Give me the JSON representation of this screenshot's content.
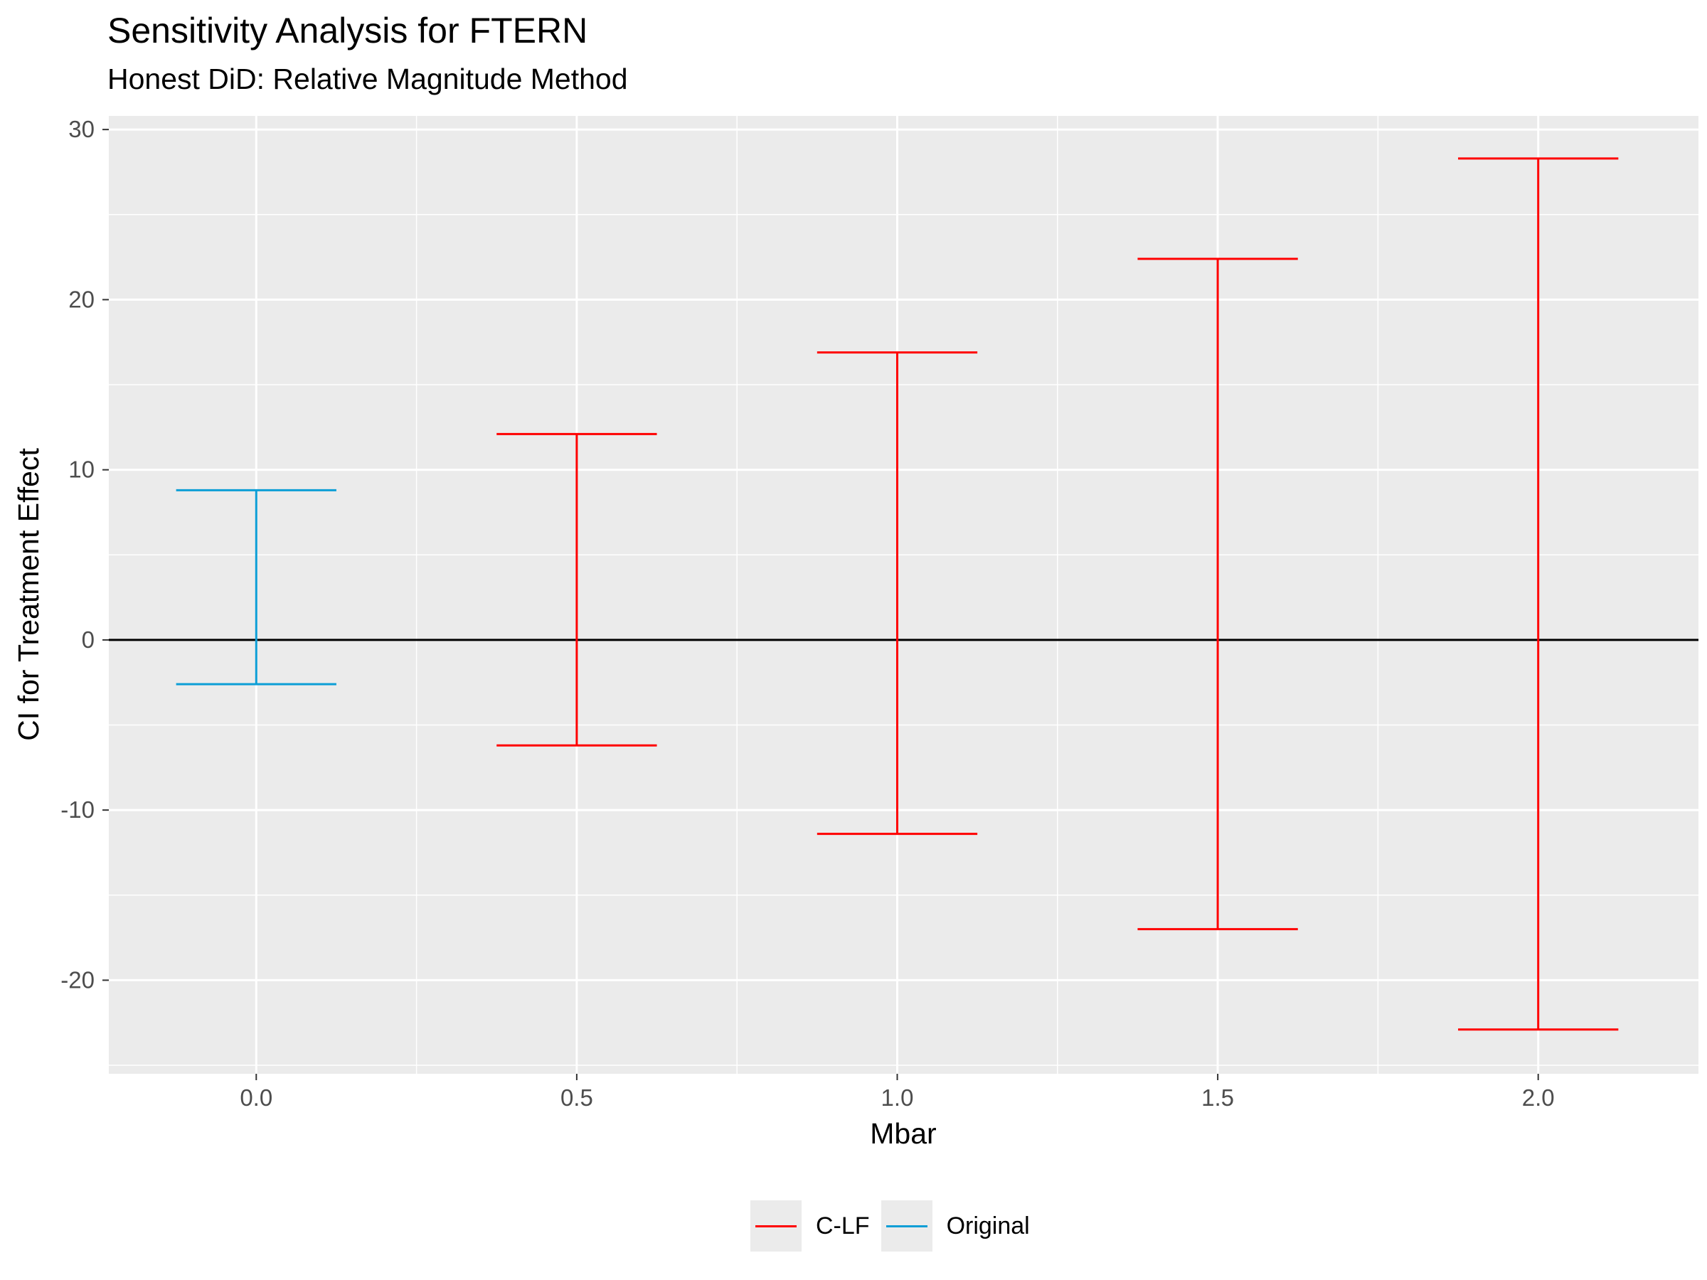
{
  "title": "Sensitivity Analysis for FTERN",
  "subtitle": "Honest DiD: Relative Magnitude Method",
  "chart_data": {
    "type": "errorbar",
    "title": "Sensitivity Analysis for FTERN",
    "subtitle": "Honest DiD: Relative Magnitude Method",
    "xlabel": "Mbar",
    "ylabel": "CI for Treatment Effect",
    "x_ticks": [
      "0.0",
      "0.5",
      "1.0",
      "1.5",
      "2.0"
    ],
    "y_ticks": [
      "30",
      "20",
      "10",
      "0",
      "-10",
      "-20"
    ],
    "xlim": [
      -0.23,
      2.25
    ],
    "ylim": [
      -25.5,
      30.8
    ],
    "grid": true,
    "hline": 0,
    "legend_position": "bottom",
    "series": [
      {
        "name": "C-LF",
        "color": "#ff0000",
        "points": [
          {
            "x": 0.5,
            "lb": -6.2,
            "ub": 12.1
          },
          {
            "x": 1.0,
            "lb": -11.4,
            "ub": 16.9
          },
          {
            "x": 1.5,
            "lb": -17.0,
            "ub": 22.4
          },
          {
            "x": 2.0,
            "lb": -22.9,
            "ub": 28.3
          }
        ]
      },
      {
        "name": "Original",
        "color": "#0c9ed6",
        "points": [
          {
            "x": 0.0,
            "lb": -2.6,
            "ub": 8.8
          }
        ]
      }
    ]
  }
}
